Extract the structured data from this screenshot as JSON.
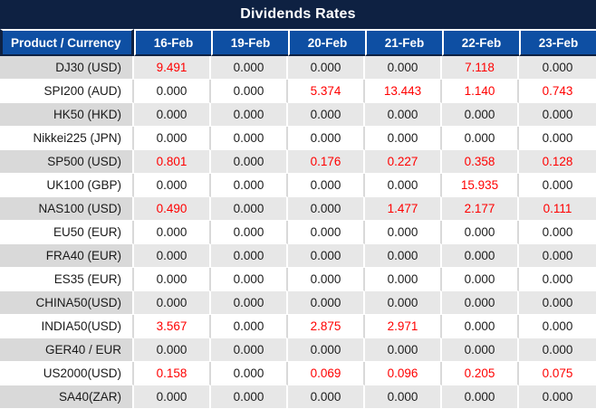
{
  "title": "Dividends Rates",
  "colors": {
    "title_bg": "#0e2142",
    "header_bg": "#0e4fa3",
    "label_gray": "#d9d9d9",
    "value_gray": "#e7e7e7",
    "nonzero_value": "#ff0000",
    "zero_value": "#1c1c1c"
  },
  "table": {
    "product_header": "Product / Currency",
    "date_headers": [
      "16-Feb",
      "19-Feb",
      "20-Feb",
      "21-Feb",
      "22-Feb",
      "23-Feb"
    ],
    "rows": [
      {
        "product": "DJ30 (USD)",
        "values": [
          "9.491",
          "0.000",
          "0.000",
          "0.000",
          "7.118",
          "0.000"
        ]
      },
      {
        "product": "SPI200 (AUD)",
        "values": [
          "0.000",
          "0.000",
          "5.374",
          "13.443",
          "1.140",
          "0.743"
        ]
      },
      {
        "product": "HK50 (HKD)",
        "values": [
          "0.000",
          "0.000",
          "0.000",
          "0.000",
          "0.000",
          "0.000"
        ]
      },
      {
        "product": "Nikkei225 (JPN)",
        "values": [
          "0.000",
          "0.000",
          "0.000",
          "0.000",
          "0.000",
          "0.000"
        ]
      },
      {
        "product": "SP500 (USD)",
        "values": [
          "0.801",
          "0.000",
          "0.176",
          "0.227",
          "0.358",
          "0.128"
        ]
      },
      {
        "product": "UK100 (GBP)",
        "values": [
          "0.000",
          "0.000",
          "0.000",
          "0.000",
          "15.935",
          "0.000"
        ]
      },
      {
        "product": "NAS100 (USD)",
        "values": [
          "0.490",
          "0.000",
          "0.000",
          "1.477",
          "2.177",
          "0.111"
        ]
      },
      {
        "product": "EU50 (EUR)",
        "values": [
          "0.000",
          "0.000",
          "0.000",
          "0.000",
          "0.000",
          "0.000"
        ]
      },
      {
        "product": "FRA40 (EUR)",
        "values": [
          "0.000",
          "0.000",
          "0.000",
          "0.000",
          "0.000",
          "0.000"
        ]
      },
      {
        "product": "ES35 (EUR)",
        "values": [
          "0.000",
          "0.000",
          "0.000",
          "0.000",
          "0.000",
          "0.000"
        ]
      },
      {
        "product": "CHINA50(USD)",
        "values": [
          "0.000",
          "0.000",
          "0.000",
          "0.000",
          "0.000",
          "0.000"
        ]
      },
      {
        "product": "INDIA50(USD)",
        "values": [
          "3.567",
          "0.000",
          "2.875",
          "2.971",
          "0.000",
          "0.000"
        ]
      },
      {
        "product": "GER40 / EUR",
        "values": [
          "0.000",
          "0.000",
          "0.000",
          "0.000",
          "0.000",
          "0.000"
        ]
      },
      {
        "product": "US2000(USD)",
        "values": [
          "0.158",
          "0.000",
          "0.069",
          "0.096",
          "0.205",
          "0.075"
        ]
      },
      {
        "product": "SA40(ZAR)",
        "values": [
          "0.000",
          "0.000",
          "0.000",
          "0.000",
          "0.000",
          "0.000"
        ]
      }
    ]
  }
}
